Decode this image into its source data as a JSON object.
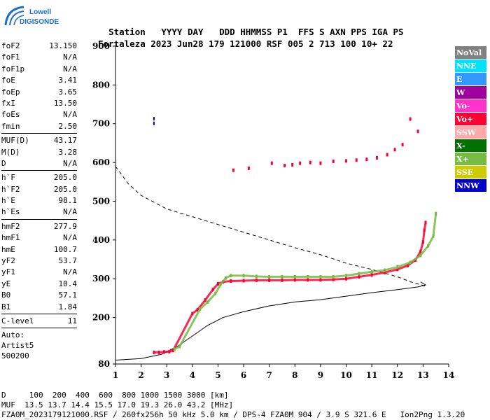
{
  "logo": {
    "line1": "Lowell",
    "line2": "DIGISONDE"
  },
  "header": {
    "labels": [
      "Station",
      "YYYY DAY",
      "DDD HHMMSS P1",
      "FFS S AXN PPS IGA PS"
    ],
    "values": [
      "Fortaleza",
      "2023 Jun28",
      "179 121000 RSF",
      "005 2 713 100 10+ 22"
    ]
  },
  "params": {
    "group1": [
      {
        "label": "foF2",
        "value": "13.150"
      },
      {
        "label": "foF1",
        "value": "N/A"
      },
      {
        "label": "foF1p",
        "value": "N/A"
      },
      {
        "label": "foE",
        "value": "3.41"
      },
      {
        "label": "foEp",
        "value": "3.65"
      },
      {
        "label": "fxI",
        "value": "13.50"
      },
      {
        "label": "foEs",
        "value": "N/A"
      },
      {
        "label": "fmin",
        "value": "2.50"
      }
    ],
    "group2": [
      {
        "label": "MUF(D)",
        "value": "43.17"
      },
      {
        "label": "M(D)",
        "value": "3.28"
      },
      {
        "label": "D",
        "value": "N/A"
      }
    ],
    "group3": [
      {
        "label": "h`F",
        "value": "205.0"
      },
      {
        "label": "h`F2",
        "value": "205.0"
      },
      {
        "label": "h`E",
        "value": "98.1"
      },
      {
        "label": "h`Es",
        "value": "N/A"
      }
    ],
    "group4": [
      {
        "label": "hmF2",
        "value": "277.9"
      },
      {
        "label": "hmF1",
        "value": "N/A"
      },
      {
        "label": "hmE",
        "value": "100.7"
      },
      {
        "label": "yF2",
        "value": "53.7"
      },
      {
        "label": "yF1",
        "value": "N/A"
      },
      {
        "label": "yE",
        "value": "10.4"
      },
      {
        "label": "B0",
        "value": "57.1"
      },
      {
        "label": "B1",
        "value": "1.84"
      }
    ],
    "group5": [
      {
        "label": "C-level",
        "value": "11"
      }
    ],
    "auto": [
      "Auto:",
      "Artist5",
      "500200"
    ]
  },
  "legend": [
    {
      "label": "NoVal",
      "color": "#808080"
    },
    {
      "label": "NNE",
      "color": "#00e0ff"
    },
    {
      "label": "E",
      "color": "#3399ff"
    },
    {
      "label": "W",
      "color": "#a000a0"
    },
    {
      "label": "Vo-",
      "color": "#ff33cc"
    },
    {
      "label": "Vo+",
      "color": "#ff0033"
    },
    {
      "label": "SSW",
      "color": "#ffaaaa"
    },
    {
      "label": "X-",
      "color": "#007000"
    },
    {
      "label": "X+",
      "color": "#77bb44"
    },
    {
      "label": "SSE",
      "color": "#cccc00"
    },
    {
      "label": "NNW",
      "color": "#0000cc"
    }
  ],
  "footer": {
    "d_row": "D     100  200  400  600  800 1000 1500 3000 [km]",
    "muf_row": "MUF  13.5 13.7 14.4 15.5 17.0 19.3 26.0 43.2 [MHz]",
    "info_row": "FZA0M_2023179121000.RSF / 260fx256h 50 kHz 5.0 km / DPS-4 FZA0M 904 / 3.9 S 321.6 E   Ion2Png 1.3.20"
  },
  "chart_data": {
    "type": "scatter",
    "xlim": [
      1,
      14
    ],
    "ylim": [
      80,
      900
    ],
    "xticks": [
      1,
      2,
      3,
      4,
      5,
      6,
      7,
      8,
      9,
      10,
      11,
      12,
      13,
      14
    ],
    "yticks": [
      80,
      200,
      300,
      400,
      500,
      600,
      700,
      800,
      900
    ],
    "traces": [
      {
        "polarization": "O",
        "color": "#ff0033",
        "points": [
          [
            2.5,
            110
          ],
          [
            2.7,
            110
          ],
          [
            2.9,
            111
          ],
          [
            3.1,
            112
          ],
          [
            3.25,
            115
          ],
          [
            4.0,
            210
          ],
          [
            4.2,
            220
          ],
          [
            4.5,
            245
          ],
          [
            4.8,
            272
          ],
          [
            5.0,
            287
          ],
          [
            5.2,
            292
          ],
          [
            5.5,
            294
          ],
          [
            6.0,
            295
          ],
          [
            6.5,
            296
          ],
          [
            7.0,
            296
          ],
          [
            7.5,
            296
          ],
          [
            8.0,
            297
          ],
          [
            8.5,
            297
          ],
          [
            9.0,
            297
          ],
          [
            9.5,
            298
          ],
          [
            10.0,
            300
          ],
          [
            10.5,
            305
          ],
          [
            11.0,
            310
          ],
          [
            11.5,
            316
          ],
          [
            12.0,
            324
          ],
          [
            12.4,
            334
          ],
          [
            12.7,
            348
          ],
          [
            12.9,
            370
          ],
          [
            13.0,
            395
          ],
          [
            13.05,
            425
          ],
          [
            13.1,
            445
          ]
        ]
      },
      {
        "polarization": "X",
        "color": "#77bb44",
        "points": [
          [
            3.3,
            118
          ],
          [
            3.5,
            125
          ],
          [
            4.3,
            222
          ],
          [
            4.6,
            240
          ],
          [
            4.9,
            262
          ],
          [
            5.1,
            285
          ],
          [
            5.3,
            302
          ],
          [
            5.5,
            308
          ],
          [
            6.0,
            308
          ],
          [
            6.5,
            306
          ],
          [
            7.0,
            305
          ],
          [
            7.5,
            305
          ],
          [
            8.0,
            305
          ],
          [
            8.5,
            305
          ],
          [
            9.0,
            305
          ],
          [
            9.5,
            305
          ],
          [
            10.0,
            308
          ],
          [
            10.5,
            313
          ],
          [
            11.0,
            318
          ],
          [
            11.5,
            322
          ],
          [
            12.0,
            330
          ],
          [
            12.5,
            342
          ],
          [
            12.9,
            360
          ],
          [
            13.2,
            385
          ],
          [
            13.4,
            410
          ],
          [
            13.5,
            468
          ]
        ]
      },
      {
        "polarization": "scattered",
        "color": "#ff0033",
        "points": [
          [
            5.6,
            580
          ],
          [
            6.2,
            585
          ],
          [
            7.1,
            598
          ],
          [
            7.6,
            592
          ],
          [
            7.9,
            594
          ],
          [
            8.2,
            598
          ],
          [
            8.6,
            600
          ],
          [
            9.0,
            598
          ],
          [
            9.5,
            603
          ],
          [
            10.0,
            604
          ],
          [
            10.4,
            606
          ],
          [
            10.8,
            608
          ],
          [
            11.2,
            612
          ],
          [
            11.6,
            620
          ],
          [
            11.9,
            633
          ],
          [
            12.2,
            646
          ],
          [
            12.5,
            712
          ],
          [
            12.8,
            680
          ]
        ]
      }
    ],
    "profile": [
      [
        1.0,
        90
      ],
      [
        2.0,
        94
      ],
      [
        2.8,
        105
      ],
      [
        3.4,
        125
      ],
      [
        4.0,
        152
      ],
      [
        4.6,
        180
      ],
      [
        5.2,
        200
      ],
      [
        6.0,
        215
      ],
      [
        7.0,
        230
      ],
      [
        8.0,
        240
      ],
      [
        9.0,
        246
      ],
      [
        10.0,
        255
      ],
      [
        11.0,
        264
      ],
      [
        12.0,
        272
      ],
      [
        12.8,
        279
      ],
      [
        13.1,
        284
      ],
      [
        12.9,
        292
      ]
    ],
    "dashed": [
      [
        1.0,
        590
      ],
      [
        1.5,
        545
      ],
      [
        2.0,
        515
      ],
      [
        3.0,
        480
      ],
      [
        4.0,
        460
      ],
      [
        5.0,
        440
      ],
      [
        6.0,
        420
      ],
      [
        7.0,
        400
      ],
      [
        8.0,
        380
      ],
      [
        9.0,
        362
      ],
      [
        10.0,
        340
      ],
      [
        11.0,
        324
      ],
      [
        12.0,
        305
      ],
      [
        12.6,
        290
      ],
      [
        13.0,
        283
      ],
      [
        13.1,
        279
      ]
    ]
  }
}
